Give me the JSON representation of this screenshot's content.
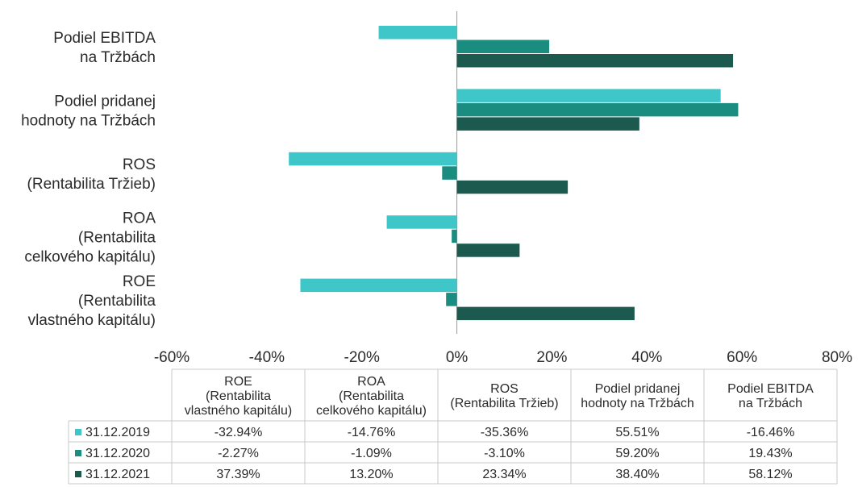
{
  "chart_data": {
    "type": "bar",
    "orientation": "horizontal",
    "title": "",
    "categories": [
      "Podiel EBITDA na Tržbách",
      "Podiel pridanej hodnoty na Tržbách",
      "ROS (Rentabilita Tržieb)",
      "ROA (Rentabilita celkového kapitálu)",
      "ROE (Rentabilita vlastného kapitálu)"
    ],
    "category_label_lines": [
      [
        "Podiel EBITDA",
        "na Tržbách"
      ],
      [
        "Podiel pridanej",
        "hodnoty na Tržbách"
      ],
      [
        "ROS",
        "(Rentabilita Tržieb)"
      ],
      [
        "ROA",
        "(Rentabilita",
        "celkového kapitálu)"
      ],
      [
        "ROE",
        "(Rentabilita",
        "vlastného kapitálu)"
      ]
    ],
    "series": [
      {
        "name": "31.12.2019",
        "color": "#3fc6c9",
        "values": [
          -16.46,
          55.51,
          -35.36,
          -14.76,
          -32.94
        ]
      },
      {
        "name": "31.12.2020",
        "color": "#1a8c80",
        "values": [
          19.43,
          59.2,
          -3.1,
          -1.09,
          -2.27
        ]
      },
      {
        "name": "31.12.2021",
        "color": "#1c5a50",
        "values": [
          58.12,
          38.4,
          23.34,
          13.2,
          37.39
        ]
      }
    ],
    "xlim": [
      -60,
      80
    ],
    "x_ticks": [
      "-60%",
      "-40%",
      "-20%",
      "0%",
      "20%",
      "40%",
      "60%",
      "80%"
    ],
    "data_table": {
      "headers": [
        [
          "ROE",
          "(Rentabilita",
          "vlastného kapitálu)"
        ],
        [
          "ROA",
          "(Rentabilita",
          "celkového kapitálu)"
        ],
        [
          "ROS",
          "(Rentabilita Tržieb)"
        ],
        [
          "Podiel pridanej",
          "hodnoty na Tržbách"
        ],
        [
          "Podiel EBITDA",
          "na Tržbách"
        ]
      ],
      "rows": [
        {
          "series": "31.12.2019",
          "cells": [
            "-32.94%",
            "-14.76%",
            "-35.36%",
            "55.51%",
            "-16.46%"
          ]
        },
        {
          "series": "31.12.2020",
          "cells": [
            "-2.27%",
            "-1.09%",
            "-3.10%",
            "59.20%",
            "19.43%"
          ]
        },
        {
          "series": "31.12.2021",
          "cells": [
            "37.39%",
            "13.20%",
            "23.34%",
            "38.40%",
            "58.12%"
          ]
        }
      ]
    },
    "grid": false,
    "legend": "in data table"
  }
}
